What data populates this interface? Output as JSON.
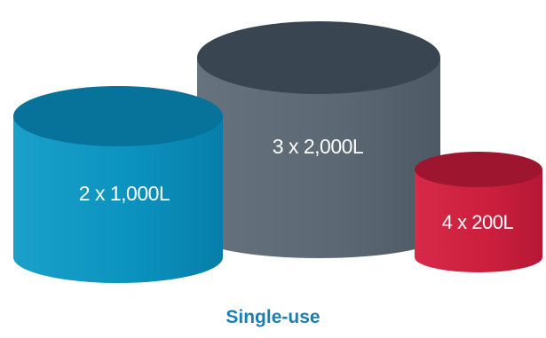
{
  "caption": "Single-use",
  "vessels": [
    {
      "label": "2 x 1,000L",
      "count": 2,
      "volume_liters": 1000,
      "color": "#0b93bf",
      "top_color": "#08739a"
    },
    {
      "label": "3 x 2,000L",
      "count": 3,
      "volume_liters": 2000,
      "color": "#5c6b78",
      "top_color": "#394550"
    },
    {
      "label": "4 x 200L",
      "count": 4,
      "volume_liters": 200,
      "color": "#cf1f3f",
      "top_color": "#9e1530"
    }
  ]
}
